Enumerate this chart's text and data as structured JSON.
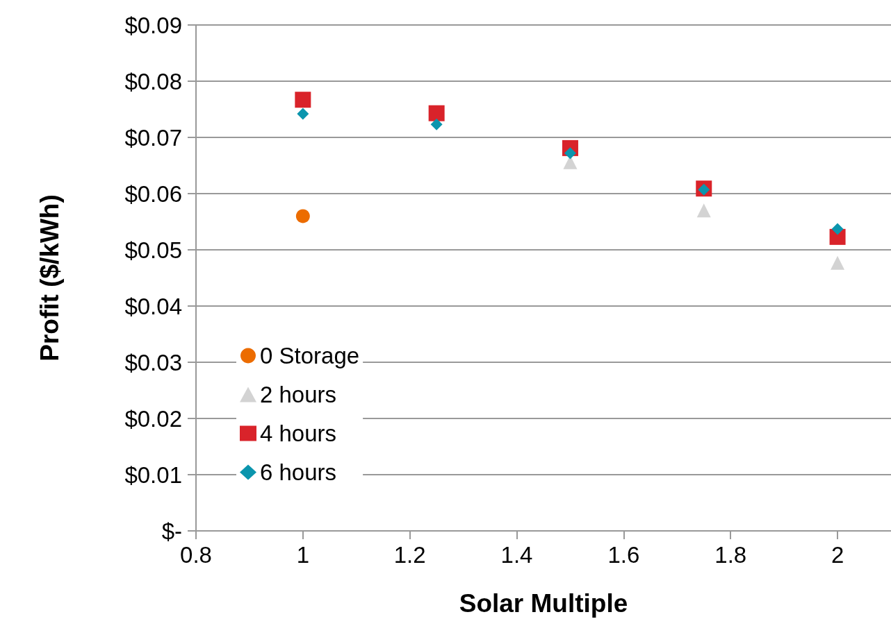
{
  "chart_data": {
    "type": "scatter",
    "xlabel": "Solar Multiple",
    "ylabel": "Profit ($/kWh)",
    "series": [
      {
        "name": "0 Storage",
        "color": "#ec6c00",
        "marker": "circle",
        "x": [
          1
        ],
        "values": [
          0.056
        ]
      },
      {
        "name": "2 hours",
        "color": "#d3d3d3",
        "marker": "triangle",
        "x": [
          1.5,
          1.75,
          2
        ],
        "values": [
          0.0656,
          0.057,
          0.0477
        ]
      },
      {
        "name": "4 hours",
        "color": "#d9232a",
        "marker": "square",
        "x": [
          1,
          1.25,
          1.5,
          1.75,
          2
        ],
        "values": [
          0.0767,
          0.0743,
          0.0681,
          0.0609,
          0.0523
        ]
      },
      {
        "name": "6 hours",
        "color": "#0b95ad",
        "marker": "diamond",
        "x": [
          1,
          1.25,
          1.5,
          1.75,
          2
        ],
        "values": [
          0.0742,
          0.0723,
          0.0672,
          0.0607,
          0.0537
        ]
      }
    ],
    "xlim": [
      0.8,
      2.1
    ],
    "xticks": [
      {
        "value": 0.8,
        "label": "0.8"
      },
      {
        "value": 1,
        "label": "1"
      },
      {
        "value": 1.2,
        "label": "1.2"
      },
      {
        "value": 1.4,
        "label": "1.4"
      },
      {
        "value": 1.6,
        "label": "1.6"
      },
      {
        "value": 1.8,
        "label": "1.8"
      },
      {
        "value": 2,
        "label": "2"
      }
    ],
    "ylim": [
      0,
      0.09
    ],
    "yticks": [
      {
        "value": 0,
        "label": "$-"
      },
      {
        "value": 0.01,
        "label": "$0.01"
      },
      {
        "value": 0.02,
        "label": "$0.02"
      },
      {
        "value": 0.03,
        "label": "$0.03"
      },
      {
        "value": 0.04,
        "label": "$0.04"
      },
      {
        "value": 0.05,
        "label": "$0.05"
      },
      {
        "value": 0.06,
        "label": "$0.06"
      },
      {
        "value": 0.07,
        "label": "$0.07"
      },
      {
        "value": 0.08,
        "label": "$0.08"
      },
      {
        "value": 0.09,
        "label": "$0.09"
      }
    ],
    "grid": "y",
    "legend": "bottom left"
  }
}
